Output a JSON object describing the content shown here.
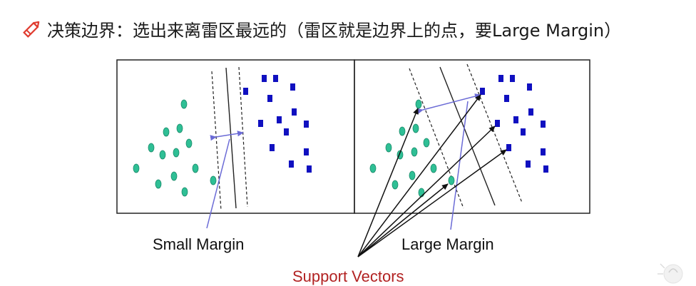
{
  "heading": {
    "text": "决策边界：选出来离雷区最远的（雷区就是边界上的点，要Large Margin）",
    "icon": "pencil-icon",
    "icon_color": "#e03b2f"
  },
  "labels": {
    "small_margin": "Small Margin",
    "large_margin": "Large Margin",
    "support_vectors": "Support Vectors"
  },
  "colors": {
    "circle_fill": "#2fbf95",
    "square_fill": "#1010c0",
    "margin_arrow": "#6b6bd6",
    "support_vectors_text": "#b22222"
  }
}
